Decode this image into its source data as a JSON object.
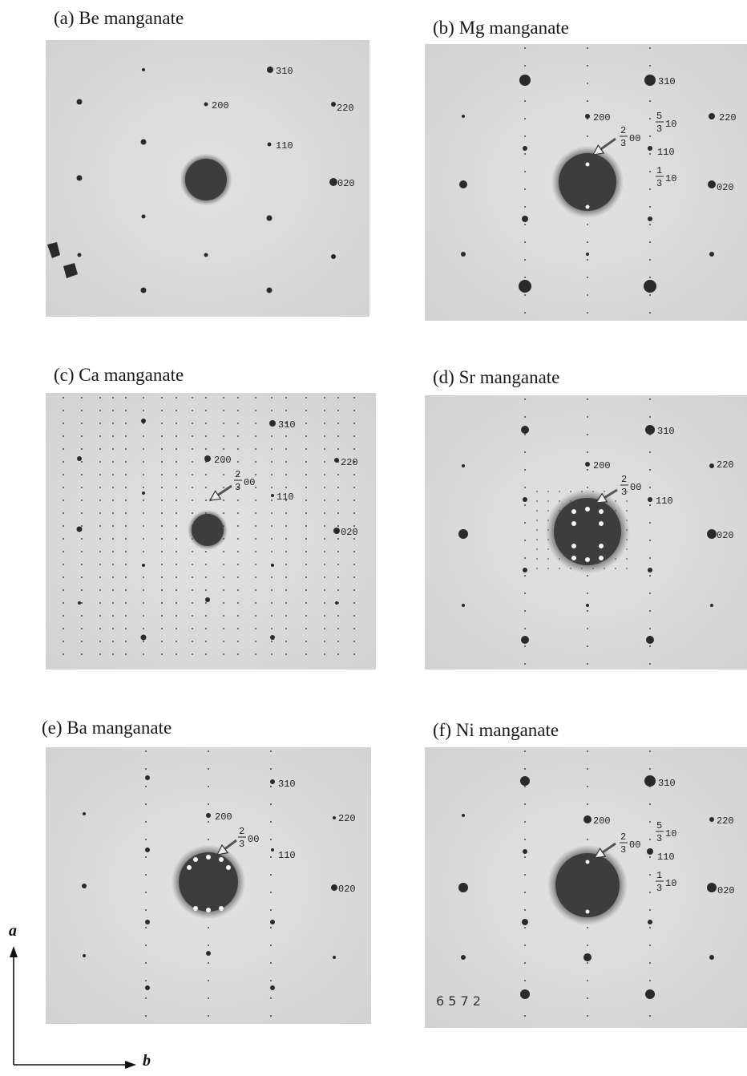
{
  "panels": [
    {
      "id": "a",
      "caption": "(a) Be manganate",
      "labels": [
        {
          "text": "310"
        },
        {
          "text": "200"
        },
        {
          "text": "220"
        },
        {
          "text": "110"
        },
        {
          "text": "020"
        }
      ]
    },
    {
      "id": "b",
      "caption": "(b) Mg manganate",
      "labels": [
        {
          "text": "310"
        },
        {
          "text": "200"
        },
        {
          "text": "220"
        },
        {
          "text": "110"
        },
        {
          "text": "020"
        }
      ],
      "fractions": [
        {
          "num": "2",
          "den": "3",
          "suffix": "00"
        },
        {
          "num": "5",
          "den": "3",
          "suffix": "10"
        },
        {
          "num": "1",
          "den": "3",
          "suffix": "10"
        }
      ]
    },
    {
      "id": "c",
      "caption": "(c) Ca manganate",
      "labels": [
        {
          "text": "310"
        },
        {
          "text": "200"
        },
        {
          "text": "220"
        },
        {
          "text": "110"
        },
        {
          "text": "020"
        }
      ],
      "fractions": [
        {
          "num": "2",
          "den": "3",
          "suffix": "00"
        }
      ]
    },
    {
      "id": "d",
      "caption": "(d) Sr manganate",
      "labels": [
        {
          "text": "310"
        },
        {
          "text": "200"
        },
        {
          "text": "220"
        },
        {
          "text": "110"
        },
        {
          "text": "020"
        }
      ],
      "fractions": [
        {
          "num": "2",
          "den": "3",
          "suffix": "00"
        }
      ]
    },
    {
      "id": "e",
      "caption": "(e) Ba manganate",
      "labels": [
        {
          "text": "310"
        },
        {
          "text": "200"
        },
        {
          "text": "220"
        },
        {
          "text": "110"
        },
        {
          "text": "020"
        }
      ],
      "fractions": [
        {
          "num": "2",
          "den": "3",
          "suffix": "00"
        }
      ]
    },
    {
      "id": "f",
      "caption": "(f) Ni manganate",
      "labels": [
        {
          "text": "310"
        },
        {
          "text": "200"
        },
        {
          "text": "220"
        },
        {
          "text": "110"
        },
        {
          "text": "020"
        }
      ],
      "fractions": [
        {
          "num": "2",
          "den": "3",
          "suffix": "00"
        },
        {
          "num": "5",
          "den": "3",
          "suffix": "10"
        },
        {
          "num": "1",
          "den": "3",
          "suffix": "10"
        }
      ],
      "plate_number": "6 5 7 2"
    }
  ],
  "axes": {
    "vertical": "a",
    "horizontal": "b"
  }
}
